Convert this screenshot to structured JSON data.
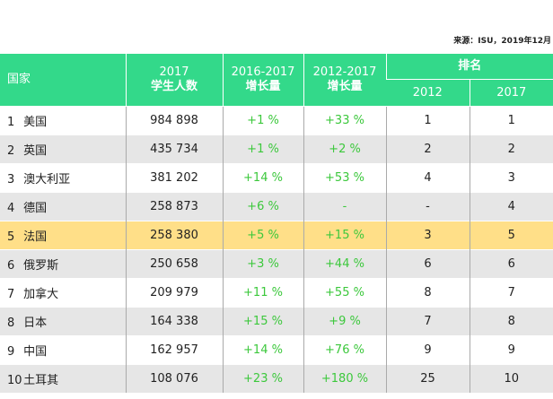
{
  "source": "来源：ISU，2019年12月",
  "header": {
    "country": "国家",
    "students_line1": "2017",
    "students_line2": "学生人数",
    "growth1_line1": "2016-2017",
    "growth1_line2": "增长量",
    "growth2_line1": "2012-2017",
    "growth2_line2": "增长量",
    "ranking": "排名",
    "rank_2012": "2012",
    "rank_2017": "2017"
  },
  "rows": [
    {
      "rank": "1",
      "country": "美国",
      "students": "984 898",
      "growth_16_17": "+1 %",
      "growth_12_17": "+33 %",
      "rank_2012": "1",
      "rank_2017": "1"
    },
    {
      "rank": "2",
      "country": "英国",
      "students": "435 734",
      "growth_16_17": "+1 %",
      "growth_12_17": "+2 %",
      "rank_2012": "2",
      "rank_2017": "2"
    },
    {
      "rank": "3",
      "country": "澳大利亚",
      "students": "381 202",
      "growth_16_17": "+14 %",
      "growth_12_17": "+53 %",
      "rank_2012": "4",
      "rank_2017": "3"
    },
    {
      "rank": "4",
      "country": "德国",
      "students": "258 873",
      "growth_16_17": "+6 %",
      "growth_12_17": "-",
      "rank_2012": "-",
      "rank_2017": "4"
    },
    {
      "rank": "5",
      "country": "法国",
      "students": "258 380",
      "growth_16_17": "+5 %",
      "growth_12_17": "+15 %",
      "rank_2012": "3",
      "rank_2017": "5"
    },
    {
      "rank": "6",
      "country": "俄罗斯",
      "students": "250 658",
      "growth_16_17": "+3 %",
      "growth_12_17": "+44 %",
      "rank_2012": "6",
      "rank_2017": "6"
    },
    {
      "rank": "7",
      "country": "加拿大",
      "students": "209 979",
      "growth_16_17": "+11 %",
      "growth_12_17": "+55 %",
      "rank_2012": "8",
      "rank_2017": "7"
    },
    {
      "rank": "8",
      "country": "日本",
      "students": "164 338",
      "growth_16_17": "+15 %",
      "growth_12_17": "+9 %",
      "rank_2012": "7",
      "rank_2017": "8"
    },
    {
      "rank": "9",
      "country": "中国",
      "students": "162 957",
      "growth_16_17": "+14 %",
      "growth_12_17": "+76 %",
      "rank_2012": "9",
      "rank_2017": "9"
    },
    {
      "rank": "10",
      "country": "土耳其",
      "students": "108 076",
      "growth_16_17": "+23 %",
      "growth_12_17": "+180 %",
      "rank_2012": "25",
      "rank_2017": "10"
    }
  ],
  "highlight_row": 4,
  "colors": {
    "header_bg": "#33d98a",
    "growth_text": "#3cc83c",
    "highlight_bg": "#ffdf88",
    "stripe_bg": "#e6e6e6"
  }
}
